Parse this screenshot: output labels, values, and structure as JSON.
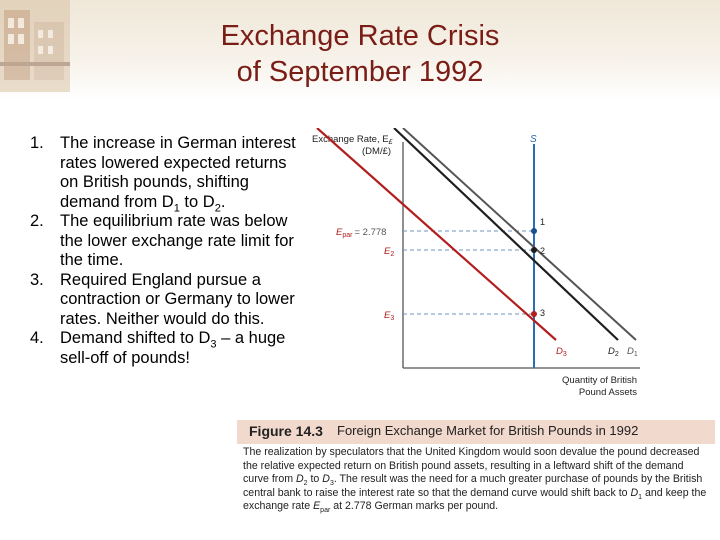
{
  "slide": {
    "title_line1": "Exchange Rate Crisis",
    "title_line2": "of September 1992"
  },
  "points": [
    {
      "num": "1.",
      "html": "The increase in German interest rates lowered expected returns on British pounds, shifting demand from D<sub>1</sub> to D<sub>2</sub>."
    },
    {
      "num": "2.",
      "html": "The equilibrium rate was below the lower exchange rate limit for the time."
    },
    {
      "num": "3.",
      "html": "Required England pursue a contraction or Germany to lower rates.  Neither would do this."
    },
    {
      "num": "4.",
      "html": "Demand shifted to D<sub>3</sub> – a huge sell-off of pounds!"
    }
  ],
  "figure": {
    "y_axis_label_line1": "Exchange Rate, E",
    "y_axis_label_sub": "£",
    "y_axis_label_line2": "(DM/£)",
    "x_axis_label_line1": "Quantity of British",
    "x_axis_label_line2": "Pound Assets",
    "supply_label": "S",
    "e_par_label": "E",
    "e_par_sub": "par",
    "e_par_value": "= 2.778",
    "e2_label": "E",
    "e2_sub": "2",
    "e3_label": "E",
    "e3_sub": "3",
    "point_labels": [
      "1",
      "2",
      "3"
    ],
    "curve_labels": [
      {
        "name": "D",
        "sub": "3"
      },
      {
        "name": "D",
        "sub": "2"
      },
      {
        "name": "D",
        "sub": "1"
      }
    ],
    "colors": {
      "supply": "#2a6db5",
      "d1": "#555555",
      "d2": "#1e1e1e",
      "d3": "#b21e1e",
      "dashed": "#6f93bf",
      "axis": "#555555"
    }
  },
  "caption": {
    "figure_number": "Figure 14.3",
    "figure_title": "Foreign Exchange Market for British Pounds in 1992",
    "text_html": "The realization by speculators that the United Kingdom would soon devalue the pound decreased the relative expected return on British pound assets, resulting in a leftward shift of the demand curve from <i>D</i><sub>2</sub> to <i>D</i><sub>3</sub>. The result was the need for a much greater purchase of pounds by the British central bank to raise the interest rate so that the demand curve would shift back to <i>D</i><sub>1</sub> and keep the exchange rate <i>E</i><sub>par</sub> at 2.778 German marks per pound."
  }
}
